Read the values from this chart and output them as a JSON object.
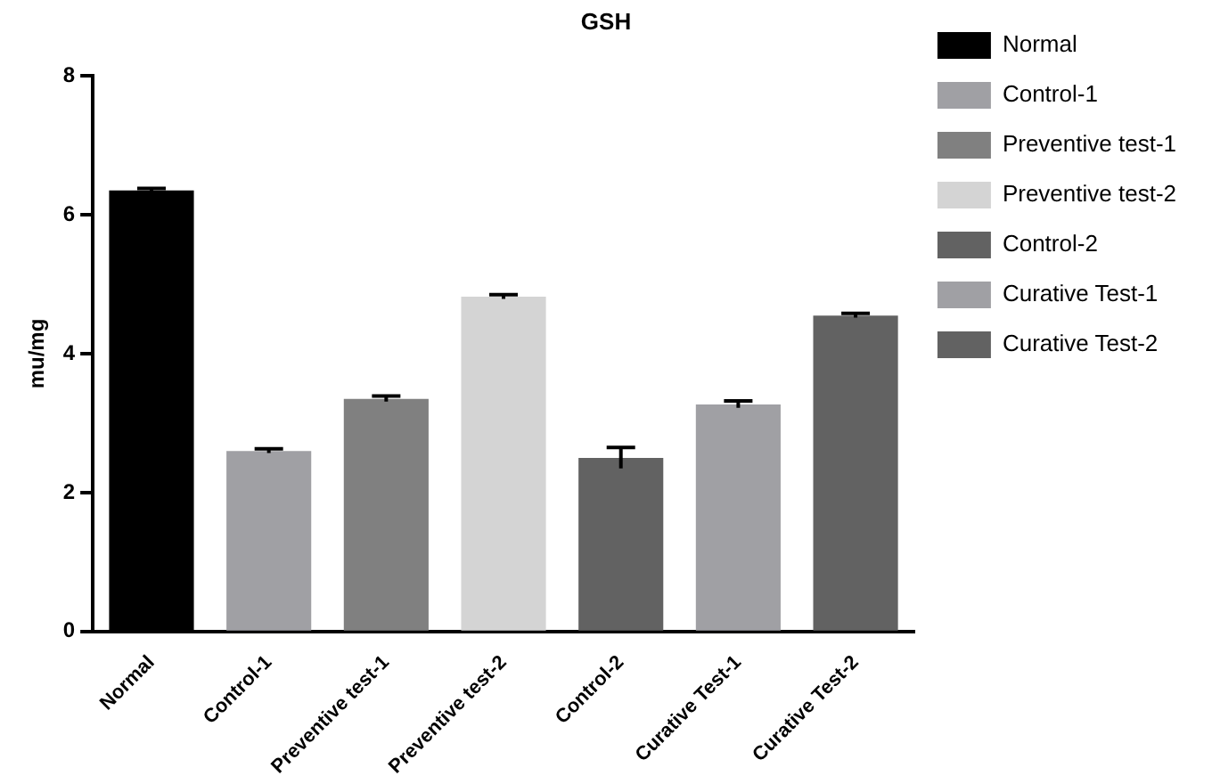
{
  "chart_data": {
    "type": "bar",
    "title": "GSH",
    "ylabel": "mu/mg",
    "categories": [
      "Normal",
      "Control-1",
      "Preventive test-1",
      "Preventive test-2",
      "Control-2",
      "Curative Test-1",
      "Curative Test-2"
    ],
    "series": [
      {
        "name": "Normal",
        "color": "#000000",
        "values": [
          6.35,
          null,
          null,
          null,
          null,
          null,
          null
        ],
        "errors": [
          0.03,
          null,
          null,
          null,
          null,
          null,
          null
        ]
      },
      {
        "name": "Control-1",
        "color": "#a0a0a4",
        "values": [
          null,
          2.6,
          null,
          null,
          null,
          null,
          null
        ],
        "errors": [
          null,
          0.03,
          null,
          null,
          null,
          null,
          null
        ]
      },
      {
        "name": "Preventive test-1",
        "color": "#808080",
        "values": [
          null,
          null,
          3.35,
          null,
          null,
          null,
          null
        ],
        "errors": [
          null,
          null,
          0.04,
          null,
          null,
          null,
          null
        ]
      },
      {
        "name": "Preventive test-2",
        "color": "#d4d4d4",
        "values": [
          null,
          null,
          null,
          4.82,
          null,
          null,
          null
        ],
        "errors": [
          null,
          null,
          null,
          0.03,
          null,
          null,
          null
        ]
      },
      {
        "name": "Control-2",
        "color": "#626262",
        "values": [
          null,
          null,
          null,
          null,
          2.5,
          null,
          null
        ],
        "errors": [
          null,
          null,
          null,
          null,
          0.15,
          null,
          null
        ]
      },
      {
        "name": "Curative Test-1",
        "color": "#a0a0a4",
        "values": [
          null,
          null,
          null,
          null,
          null,
          3.27,
          null
        ],
        "errors": [
          null,
          null,
          null,
          null,
          null,
          0.05,
          null
        ]
      },
      {
        "name": "Curative Test-2",
        "color": "#626262",
        "values": [
          null,
          null,
          null,
          null,
          null,
          null,
          4.55
        ],
        "errors": [
          null,
          null,
          null,
          null,
          null,
          null,
          0.03
        ]
      }
    ],
    "ylim": [
      0,
      8
    ],
    "yticks": [
      0,
      2,
      4,
      6,
      8
    ],
    "grid": false,
    "legend": "right"
  }
}
